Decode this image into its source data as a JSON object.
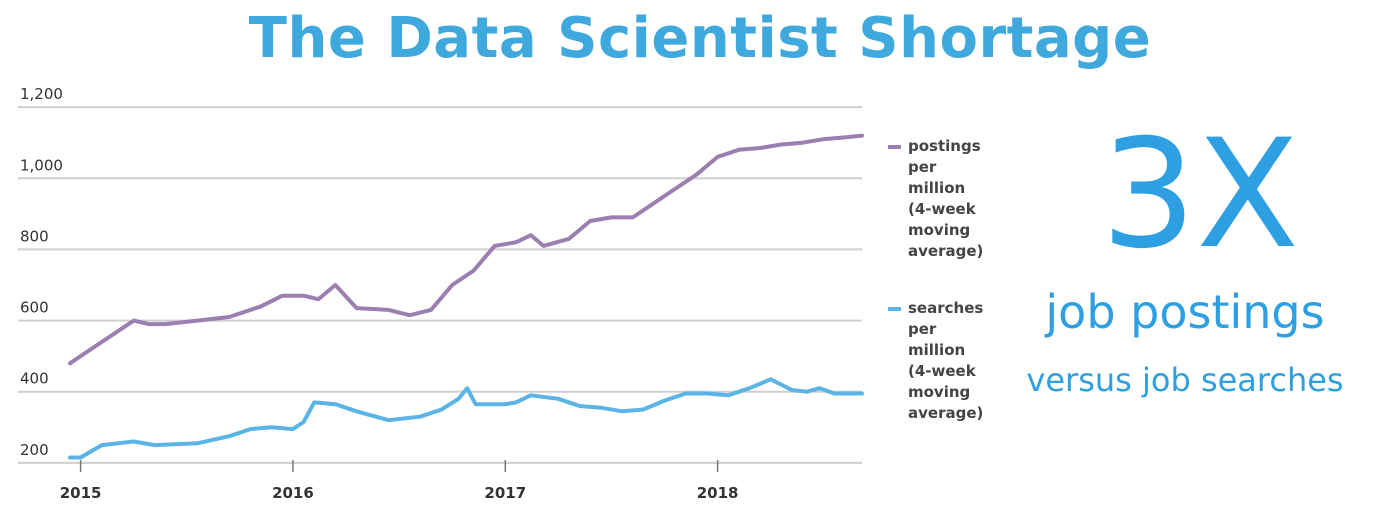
{
  "title": "The Data Scientist Shortage",
  "callout": {
    "big": "3X",
    "line1": "job postings",
    "line2": "versus job searches"
  },
  "colors": {
    "title": "#3fa8dd",
    "postings": "#9b7fb0",
    "searches": "#5ab4e5",
    "callout": "#2e9fe0"
  },
  "chart_data": {
    "type": "line",
    "title": "The Data Scientist Shortage",
    "xlabel": "",
    "ylabel": "",
    "xlim": [
      2014.95,
      2018.68
    ],
    "ylim": [
      180,
      1220
    ],
    "y_ticks": [
      200,
      400,
      600,
      800,
      1000,
      1200
    ],
    "y_tick_labels": [
      "200",
      "400",
      "600",
      "800",
      "1,000",
      "1,200"
    ],
    "x_ticks": [
      2015,
      2016,
      2017,
      2018
    ],
    "x_tick_labels": [
      "2015",
      "2016",
      "2017",
      "2018"
    ],
    "grid": "horizontal",
    "legend_position": "right",
    "series": [
      {
        "name": "postings per million (4-week moving average)",
        "color": "#9b7fb0",
        "x": [
          2014.95,
          2015.05,
          2015.15,
          2015.25,
          2015.32,
          2015.4,
          2015.55,
          2015.7,
          2015.85,
          2015.95,
          2016.05,
          2016.12,
          2016.2,
          2016.3,
          2016.45,
          2016.55,
          2016.65,
          2016.75,
          2016.85,
          2016.95,
          2017.05,
          2017.12,
          2017.18,
          2017.3,
          2017.4,
          2017.5,
          2017.6,
          2017.7,
          2017.8,
          2017.9,
          2018.0,
          2018.1,
          2018.2,
          2018.3,
          2018.4,
          2018.5,
          2018.6,
          2018.68
        ],
        "values": [
          480,
          520,
          560,
          600,
          590,
          590,
          600,
          610,
          640,
          670,
          670,
          660,
          700,
          635,
          630,
          615,
          630,
          700,
          740,
          810,
          820,
          840,
          810,
          830,
          880,
          890,
          890,
          930,
          970,
          1010,
          1060,
          1080,
          1085,
          1095,
          1100,
          1110,
          1115,
          1120
        ]
      },
      {
        "name": "searches per million (4-week moving average)",
        "color": "#5ab4e5",
        "x": [
          2014.95,
          2015.0,
          2015.1,
          2015.25,
          2015.35,
          2015.55,
          2015.7,
          2015.8,
          2015.9,
          2016.0,
          2016.05,
          2016.1,
          2016.2,
          2016.3,
          2016.45,
          2016.6,
          2016.7,
          2016.78,
          2016.82,
          2016.86,
          2017.0,
          2017.05,
          2017.12,
          2017.25,
          2017.35,
          2017.45,
          2017.55,
          2017.65,
          2017.75,
          2017.85,
          2017.95,
          2018.05,
          2018.15,
          2018.25,
          2018.35,
          2018.42,
          2018.48,
          2018.55,
          2018.68
        ],
        "values": [
          215,
          215,
          250,
          260,
          250,
          255,
          275,
          295,
          300,
          295,
          315,
          370,
          365,
          345,
          320,
          330,
          350,
          380,
          410,
          365,
          365,
          370,
          390,
          380,
          360,
          355,
          345,
          350,
          375,
          395,
          395,
          390,
          410,
          435,
          405,
          400,
          410,
          395,
          395
        ]
      }
    ]
  },
  "legend": [
    {
      "lines": [
        "postings",
        "per",
        "million",
        "(4-week",
        "moving",
        "average)"
      ]
    },
    {
      "lines": [
        "searches",
        "per",
        "million",
        "(4-week",
        "moving",
        "average)"
      ]
    }
  ]
}
